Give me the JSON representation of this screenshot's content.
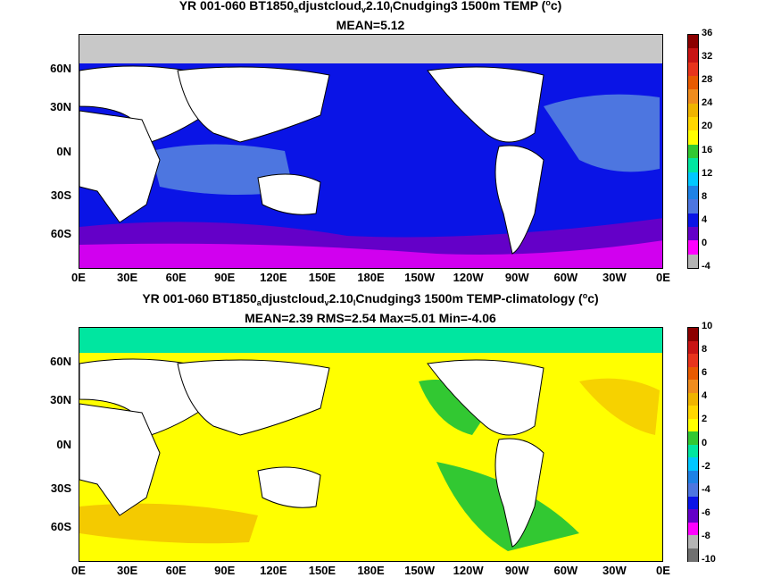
{
  "top": {
    "title_prefix": "YR 001-060 BT1850",
    "title_sub1": "a",
    "title_mid": "djustcloud",
    "title_sub2": "v",
    "title_mid2": "2.10",
    "title_sub3": "l",
    "title_suffix": "Cnudging3 1500m TEMP (",
    "title_unit_sup": "o",
    "title_unit_end": "c)",
    "stats": "MEAN=5.12",
    "colorbar_labels": [
      "36",
      "32",
      "28",
      "24",
      "20",
      "16",
      "12",
      "8",
      "4",
      "0",
      "-4"
    ],
    "colorbar_colors": [
      "#8b0000",
      "#c81414",
      "#e8341c",
      "#e85a00",
      "#f08c1e",
      "#f0b400",
      "#ffd700",
      "#ffff00",
      "#32c832",
      "#00e6a0",
      "#00c8ff",
      "#1e82e6",
      "#4d76e0",
      "#0a14e6",
      "#6400c8",
      "#ff00ff",
      "#b4b4b4"
    ]
  },
  "bottom": {
    "title_prefix": "YR 001-060 BT1850",
    "title_sub1": "a",
    "title_mid": "djustcloud",
    "title_sub2": "v",
    "title_mid2": "2.10",
    "title_sub3": "l",
    "title_suffix": "Cnudging3 1500m TEMP-climatology (",
    "title_unit_sup": "o",
    "title_unit_end": "c)",
    "stats": "MEAN=2.39   RMS=2.54   Max=5.01   Min=-4.06",
    "colorbar_labels": [
      "10",
      "8",
      "6",
      "4",
      "2",
      "0",
      "-2",
      "-4",
      "-6",
      "-8",
      "-10"
    ],
    "colorbar_colors": [
      "#8b0000",
      "#c81414",
      "#e8341c",
      "#e85a00",
      "#f08c1e",
      "#f0b400",
      "#ffd700",
      "#ffff00",
      "#32c832",
      "#00e6a0",
      "#00c8ff",
      "#1e82e6",
      "#4d76e0",
      "#0a14e6",
      "#6400c8",
      "#ff00ff",
      "#b4b4b4",
      "#707070"
    ]
  },
  "axes": {
    "x_ticks": [
      "0E",
      "30E",
      "60E",
      "90E",
      "120E",
      "150E",
      "180E",
      "150W",
      "120W",
      "90W",
      "60W",
      "30W",
      "0E"
    ],
    "y_ticks": [
      "60N",
      "30N",
      "0N",
      "30S",
      "60S"
    ]
  },
  "map_colors": {
    "land": "#ffffff",
    "top_fill": "#0a14e6",
    "top_light": "#4d76e0",
    "top_purple": "#6400c8",
    "top_magenta": "#ff00ff",
    "top_grey": "#c8c8c8",
    "bot_fill": "#ffff00",
    "bot_orange": "#f0b400",
    "bot_green": "#32c832",
    "bot_teal": "#00e6a0"
  }
}
